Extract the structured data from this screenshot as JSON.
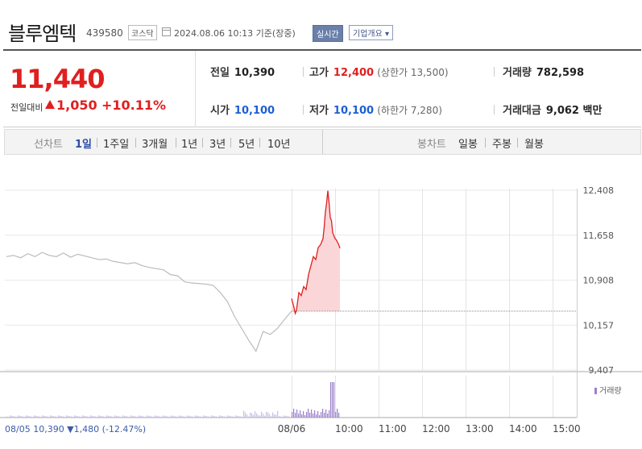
{
  "header": {
    "stock_name": "블루엠텍",
    "stock_code": "439580",
    "market": "코스닥",
    "datetime": "2024.08.06 10:13 기준(장중)",
    "realtime_label": "실시간",
    "company_label": "기업개요 ▾"
  },
  "summary": {
    "current_price": "11,440",
    "change_label": "전일대비",
    "change_value": "1,050",
    "change_percent": "+10.11%",
    "prev_close_label": "전일",
    "prev_close": "10,390",
    "high_label": "고가",
    "high": "12,400",
    "upper_limit": "(상한가 13,500)",
    "volume_label": "거래량",
    "volume": "782,598",
    "open_label": "시가",
    "open": "10,100",
    "low_label": "저가",
    "low": "10,100",
    "lower_limit": "(하한가 7,280)",
    "turnover_label": "거래대금",
    "turnover": "9,062 백만"
  },
  "tabs": {
    "line_label": "선차트",
    "line_periods": [
      "1일",
      "1주일",
      "3개월",
      "1년",
      "3년",
      "5년",
      "10년"
    ],
    "active_period": "1일",
    "candle_label": "봉차트",
    "candle_periods": [
      "일봉",
      "주봉",
      "월봉"
    ]
  },
  "colors": {
    "up": "#e01f1f",
    "down": "#1c5fd3",
    "accent": "#6a7fa9"
  },
  "chart_data": {
    "type": "line",
    "y_ticks": [
      "12,408",
      "11,658",
      "10,908",
      "10,157",
      "9,407"
    ],
    "ylim": [
      9407,
      12408
    ],
    "reference_price": 10390,
    "x_ticks": [
      "08/05",
      "08/06",
      "10:00",
      "11:00",
      "12:00",
      "13:00",
      "14:00",
      "15:00"
    ],
    "volume_label": "거래량",
    "prev_day_note": "08/05 10,390 ▼1,480 (-12.47%)",
    "prev_day_series": [
      [
        0,
        11300
      ],
      [
        2,
        11320
      ],
      [
        4,
        11280
      ],
      [
        6,
        11350
      ],
      [
        8,
        11300
      ],
      [
        10,
        11370
      ],
      [
        12,
        11320
      ],
      [
        14,
        11300
      ],
      [
        16,
        11360
      ],
      [
        18,
        11290
      ],
      [
        20,
        11340
      ],
      [
        22,
        11310
      ],
      [
        24,
        11280
      ],
      [
        26,
        11250
      ],
      [
        28,
        11260
      ],
      [
        30,
        11220
      ],
      [
        32,
        11200
      ],
      [
        34,
        11180
      ],
      [
        36,
        11200
      ],
      [
        38,
        11150
      ],
      [
        40,
        11120
      ],
      [
        42,
        11100
      ],
      [
        44,
        11080
      ],
      [
        46,
        11000
      ],
      [
        48,
        10980
      ],
      [
        50,
        10880
      ],
      [
        52,
        10860
      ],
      [
        54,
        10850
      ],
      [
        56,
        10840
      ],
      [
        58,
        10820
      ],
      [
        60,
        10700
      ],
      [
        62,
        10550
      ],
      [
        64,
        10300
      ],
      [
        66,
        10100
      ],
      [
        68,
        9900
      ],
      [
        70,
        9720
      ],
      [
        72,
        10050
      ],
      [
        74,
        10000
      ],
      [
        76,
        10100
      ],
      [
        78,
        10250
      ],
      [
        80,
        10390
      ]
    ],
    "today_series": [
      [
        0,
        10600
      ],
      [
        2,
        10450
      ],
      [
        3,
        10350
      ],
      [
        4,
        10400
      ],
      [
        6,
        10700
      ],
      [
        8,
        10650
      ],
      [
        10,
        10800
      ],
      [
        12,
        10750
      ],
      [
        14,
        11000
      ],
      [
        16,
        11150
      ],
      [
        18,
        11300
      ],
      [
        20,
        11250
      ],
      [
        22,
        11450
      ],
      [
        24,
        11500
      ],
      [
        26,
        11600
      ],
      [
        27,
        11800
      ],
      [
        28,
        12050
      ],
      [
        29,
        12200
      ],
      [
        30,
        12400
      ],
      [
        31,
        12200
      ],
      [
        32,
        11950
      ],
      [
        33,
        11900
      ],
      [
        34,
        11700
      ],
      [
        35,
        11650
      ],
      [
        36,
        11600
      ],
      [
        37,
        11580
      ],
      [
        38,
        11540
      ],
      [
        39,
        11500
      ],
      [
        40,
        11440
      ]
    ]
  }
}
